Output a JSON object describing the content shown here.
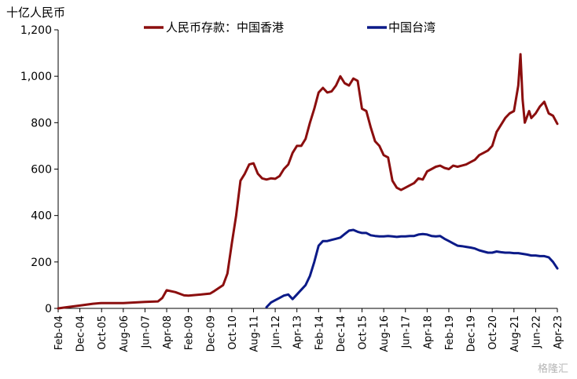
{
  "chart_data": {
    "type": "line",
    "unit_label": "十亿人民币",
    "ylim": [
      0,
      1200
    ],
    "y_ticks": [
      "0",
      "200",
      "400",
      "600",
      "800",
      "1,000",
      "1,200"
    ],
    "x_ticks": [
      "Feb-04",
      "Dec-04",
      "Oct-05",
      "Aug-06",
      "Jun-07",
      "Apr-08",
      "Feb-09",
      "Dec-09",
      "Oct-10",
      "Aug-11",
      "Jun-12",
      "Apr-13",
      "Feb-14",
      "Dec-14",
      "Oct-15",
      "Aug-16",
      "Jun-17",
      "Apr-18",
      "Feb-19",
      "Dec-19",
      "Oct-20",
      "Aug-21",
      "Jun-22",
      "Apr-23"
    ],
    "grid": false,
    "legend_position": "top",
    "series": [
      {
        "name": "人民币存款：中国香港",
        "color": "#8b0e0e",
        "points": [
          [
            "Feb-04",
            0
          ],
          [
            "Jun-04",
            5
          ],
          [
            "Dec-04",
            12
          ],
          [
            "Jun-05",
            20
          ],
          [
            "Oct-05",
            23
          ],
          [
            "Aug-06",
            23
          ],
          [
            "Jun-07",
            28
          ],
          [
            "Dec-07",
            30
          ],
          [
            "Feb-08",
            45
          ],
          [
            "Apr-08",
            78
          ],
          [
            "Aug-08",
            70
          ],
          [
            "Dec-08",
            56
          ],
          [
            "Feb-09",
            55
          ],
          [
            "Aug-09",
            60
          ],
          [
            "Dec-09",
            64
          ],
          [
            "Feb-10",
            75
          ],
          [
            "Jun-10",
            100
          ],
          [
            "Aug-10",
            150
          ],
          [
            "Oct-10",
            280
          ],
          [
            "Dec-10",
            400
          ],
          [
            "Feb-11",
            550
          ],
          [
            "Apr-11",
            580
          ],
          [
            "Jun-11",
            620
          ],
          [
            "Aug-11",
            625
          ],
          [
            "Oct-11",
            580
          ],
          [
            "Dec-11",
            560
          ],
          [
            "Feb-12",
            555
          ],
          [
            "Apr-12",
            560
          ],
          [
            "Jun-12",
            558
          ],
          [
            "Aug-12",
            570
          ],
          [
            "Oct-12",
            600
          ],
          [
            "Dec-12",
            620
          ],
          [
            "Feb-13",
            670
          ],
          [
            "Apr-13",
            700
          ],
          [
            "Jun-13",
            700
          ],
          [
            "Aug-13",
            730
          ],
          [
            "Oct-13",
            800
          ],
          [
            "Dec-13",
            860
          ],
          [
            "Feb-14",
            930
          ],
          [
            "Apr-14",
            950
          ],
          [
            "Jun-14",
            930
          ],
          [
            "Aug-14",
            935
          ],
          [
            "Oct-14",
            960
          ],
          [
            "Dec-14",
            1000
          ],
          [
            "Feb-15",
            970
          ],
          [
            "Apr-15",
            960
          ],
          [
            "Jun-15",
            990
          ],
          [
            "Aug-15",
            980
          ],
          [
            "Oct-15",
            860
          ],
          [
            "Dec-15",
            850
          ],
          [
            "Feb-16",
            780
          ],
          [
            "Apr-16",
            720
          ],
          [
            "Jun-16",
            700
          ],
          [
            "Aug-16",
            660
          ],
          [
            "Oct-16",
            650
          ],
          [
            "Dec-16",
            550
          ],
          [
            "Feb-17",
            520
          ],
          [
            "Apr-17",
            510
          ],
          [
            "Jun-17",
            520
          ],
          [
            "Aug-17",
            530
          ],
          [
            "Oct-17",
            540
          ],
          [
            "Dec-17",
            560
          ],
          [
            "Feb-18",
            555
          ],
          [
            "Apr-18",
            590
          ],
          [
            "Jun-18",
            600
          ],
          [
            "Aug-18",
            610
          ],
          [
            "Oct-18",
            615
          ],
          [
            "Dec-18",
            605
          ],
          [
            "Feb-19",
            600
          ],
          [
            "Apr-19",
            615
          ],
          [
            "Jun-19",
            610
          ],
          [
            "Aug-19",
            615
          ],
          [
            "Oct-19",
            620
          ],
          [
            "Dec-19",
            630
          ],
          [
            "Feb-20",
            640
          ],
          [
            "Apr-20",
            660
          ],
          [
            "Jun-20",
            670
          ],
          [
            "Aug-20",
            680
          ],
          [
            "Oct-20",
            700
          ],
          [
            "Dec-20",
            760
          ],
          [
            "Feb-21",
            790
          ],
          [
            "Apr-21",
            820
          ],
          [
            "Jun-21",
            840
          ],
          [
            "Aug-21",
            850
          ],
          [
            "Oct-21",
            960
          ],
          [
            "Nov-21",
            1095
          ],
          [
            "Dec-21",
            900
          ],
          [
            "Jan-22",
            800
          ],
          [
            "Mar-22",
            850
          ],
          [
            "Apr-22",
            820
          ],
          [
            "Jun-22",
            840
          ],
          [
            "Aug-22",
            870
          ],
          [
            "Oct-22",
            890
          ],
          [
            "Dec-22",
            840
          ],
          [
            "Feb-23",
            830
          ],
          [
            "Apr-23",
            795
          ]
        ]
      },
      {
        "name": "中国台湾",
        "color": "#0b1a88",
        "points": [
          [
            "Feb-12",
            5
          ],
          [
            "Apr-12",
            25
          ],
          [
            "Jun-12",
            35
          ],
          [
            "Aug-12",
            45
          ],
          [
            "Oct-12",
            55
          ],
          [
            "Dec-12",
            60
          ],
          [
            "Feb-13",
            40
          ],
          [
            "Apr-13",
            60
          ],
          [
            "Jun-13",
            80
          ],
          [
            "Aug-13",
            100
          ],
          [
            "Oct-13",
            140
          ],
          [
            "Dec-13",
            200
          ],
          [
            "Feb-14",
            270
          ],
          [
            "Apr-14",
            290
          ],
          [
            "Jun-14",
            290
          ],
          [
            "Aug-14",
            295
          ],
          [
            "Oct-14",
            300
          ],
          [
            "Dec-14",
            305
          ],
          [
            "Feb-15",
            320
          ],
          [
            "Apr-15",
            335
          ],
          [
            "Jun-15",
            338
          ],
          [
            "Aug-15",
            330
          ],
          [
            "Oct-15",
            325
          ],
          [
            "Dec-15",
            325
          ],
          [
            "Feb-16",
            315
          ],
          [
            "Apr-16",
            312
          ],
          [
            "Jun-16",
            310
          ],
          [
            "Aug-16",
            310
          ],
          [
            "Oct-16",
            312
          ],
          [
            "Dec-16",
            310
          ],
          [
            "Feb-17",
            308
          ],
          [
            "Apr-17",
            310
          ],
          [
            "Jun-17",
            310
          ],
          [
            "Aug-17",
            312
          ],
          [
            "Oct-17",
            312
          ],
          [
            "Dec-17",
            318
          ],
          [
            "Feb-18",
            320
          ],
          [
            "Apr-18",
            318
          ],
          [
            "Jun-18",
            312
          ],
          [
            "Aug-18",
            310
          ],
          [
            "Oct-18",
            312
          ],
          [
            "Dec-18",
            300
          ],
          [
            "Feb-19",
            290
          ],
          [
            "Apr-19",
            280
          ],
          [
            "Jun-19",
            270
          ],
          [
            "Aug-19",
            268
          ],
          [
            "Oct-19",
            265
          ],
          [
            "Dec-19",
            262
          ],
          [
            "Feb-20",
            258
          ],
          [
            "Apr-20",
            250
          ],
          [
            "Jun-20",
            245
          ],
          [
            "Aug-20",
            240
          ],
          [
            "Oct-20",
            240
          ],
          [
            "Dec-20",
            245
          ],
          [
            "Feb-21",
            242
          ],
          [
            "Apr-21",
            240
          ],
          [
            "Jun-21",
            240
          ],
          [
            "Aug-21",
            238
          ],
          [
            "Oct-21",
            238
          ],
          [
            "Dec-21",
            235
          ],
          [
            "Feb-22",
            232
          ],
          [
            "Apr-22",
            228
          ],
          [
            "Jun-22",
            228
          ],
          [
            "Aug-22",
            225
          ],
          [
            "Oct-22",
            225
          ],
          [
            "Dec-22",
            220
          ],
          [
            "Feb-23",
            200
          ],
          [
            "Apr-23",
            172
          ]
        ]
      }
    ]
  },
  "watermark": "格隆汇"
}
